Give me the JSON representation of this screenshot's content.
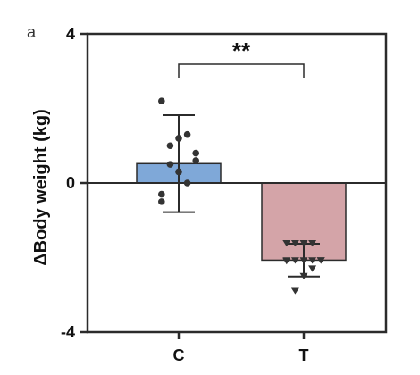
{
  "panel_label": "a",
  "chart_data": {
    "type": "bar",
    "ylabel": "ΔBody weight (kg)",
    "ylim": [
      -4,
      4
    ],
    "yticks": [
      -4,
      0,
      4
    ],
    "ytick_labels": [
      "-4",
      "0",
      "4"
    ],
    "categories": [
      "C",
      "T"
    ],
    "colors": {
      "C": "#7fa8d8",
      "T": "#d4a4a8",
      "axis": "#2b2b2b",
      "points": "#333333"
    },
    "bars": [
      {
        "category": "C",
        "mean": 0.52,
        "sd": 1.3,
        "marker": "circle",
        "points": [
          2.2,
          1.3,
          1.2,
          1.0,
          0.8,
          0.6,
          0.5,
          0.3,
          0.0,
          -0.3,
          -0.5
        ]
      },
      {
        "category": "T",
        "mean": -2.07,
        "sd": 0.44,
        "marker": "triangle-down",
        "points": [
          -1.62,
          -1.62,
          -1.62,
          -1.62,
          -2.08,
          -2.08,
          -2.08,
          -2.08,
          -2.08,
          -2.08,
          -2.1,
          -2.3,
          -2.5,
          -2.9
        ]
      }
    ],
    "significance": {
      "label": "**",
      "between": [
        "C",
        "T"
      ]
    },
    "grid": false
  }
}
